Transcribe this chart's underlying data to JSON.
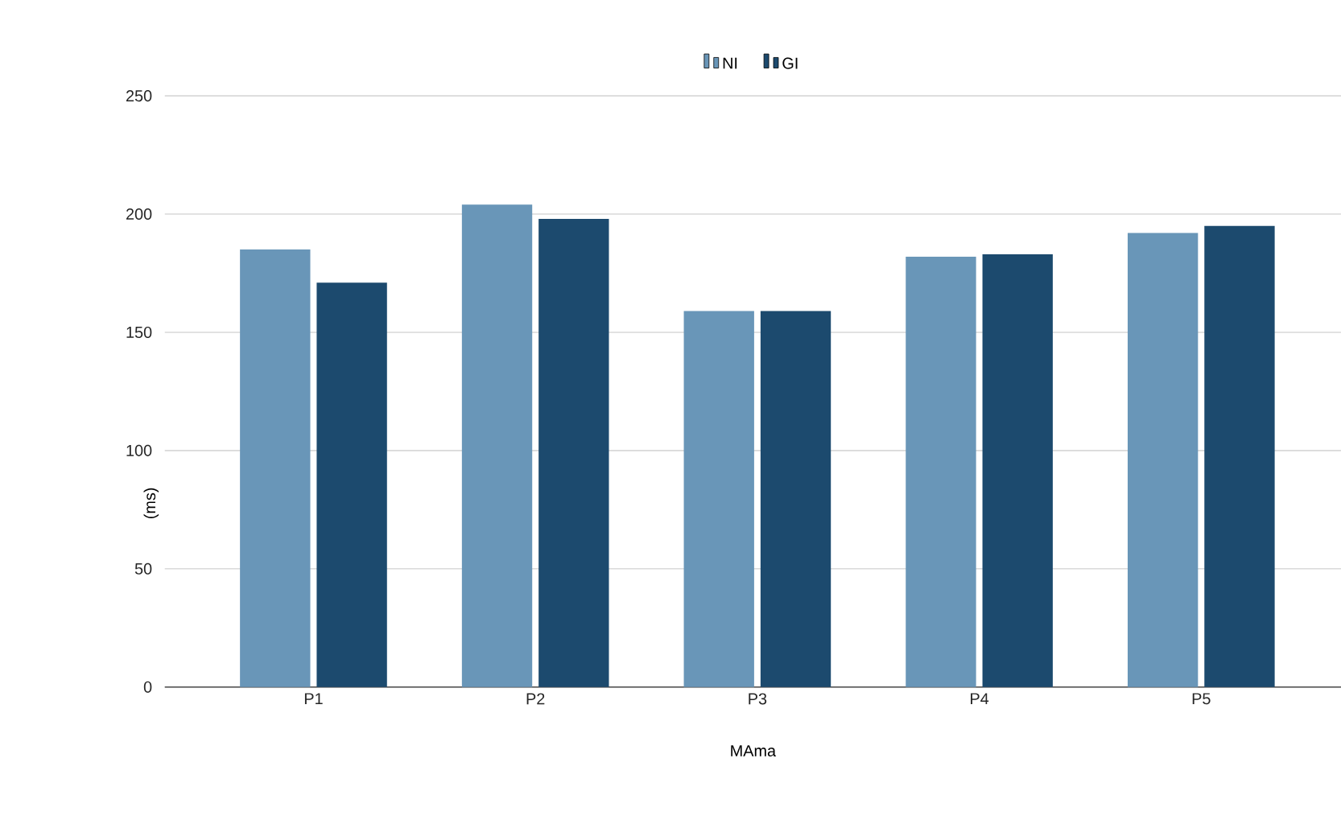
{
  "chart_data": {
    "type": "bar",
    "xlabel": "MAma",
    "ylabel": "(ms)",
    "categories": [
      "P1",
      "P2",
      "P3",
      "P4",
      "P5"
    ],
    "series": [
      {
        "name": "NI",
        "color": "#6996b8",
        "values": [
          185,
          204,
          159,
          182,
          192
        ]
      },
      {
        "name": "GI",
        "color": "#1c4a6e",
        "values": [
          171,
          198,
          159,
          183,
          195
        ]
      }
    ],
    "ylim": [
      0,
      250
    ],
    "yticks": [
      0,
      50,
      100,
      150,
      200,
      250
    ],
    "grid": "y",
    "legend": "top"
  }
}
